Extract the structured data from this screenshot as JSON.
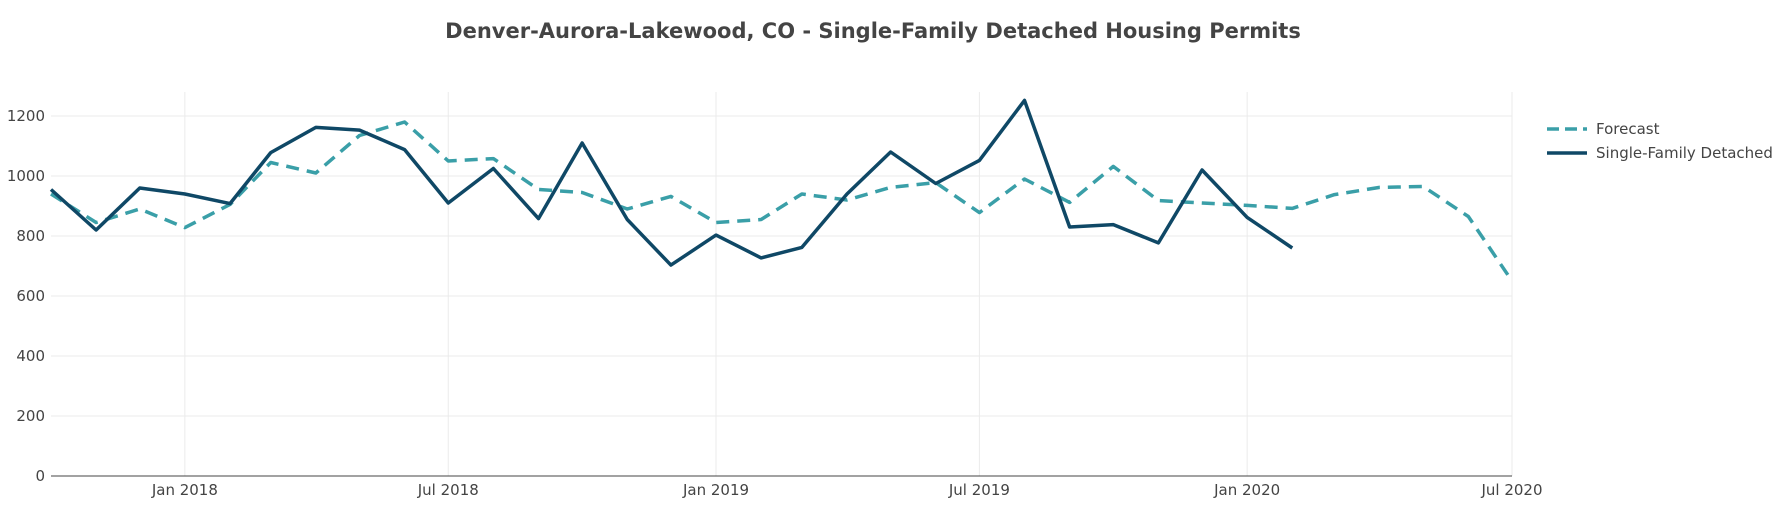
{
  "chart_data": {
    "type": "line",
    "title": "Denver-Aurora-Lakewood, CO - Single-Family Detached Housing Permits",
    "xlabel": "",
    "ylabel": "",
    "ylim": [
      0,
      1280
    ],
    "xlim": [
      "2017-10-01",
      "2020-07-01"
    ],
    "y_ticks": [
      0,
      200,
      400,
      600,
      800,
      1000,
      1200
    ],
    "x_ticks": [
      {
        "date": "2018-01-01",
        "label": "Jan 2018"
      },
      {
        "date": "2018-07-01",
        "label": "Jul 2018"
      },
      {
        "date": "2019-01-01",
        "label": "Jan 2019"
      },
      {
        "date": "2019-07-01",
        "label": "Jul 2019"
      },
      {
        "date": "2020-01-01",
        "label": "Jan 2020"
      },
      {
        "date": "2020-07-01",
        "label": "Jul 2020"
      }
    ],
    "grid": true,
    "legend_position": "top-right",
    "series": [
      {
        "name": "Forecast",
        "color": "#3a9fa8",
        "dash": "dashed",
        "points": [
          {
            "x": "2017-10-01",
            "y": 940
          },
          {
            "x": "2017-11-01",
            "y": 845
          },
          {
            "x": "2017-12-01",
            "y": 890
          },
          {
            "x": "2018-01-01",
            "y": 828
          },
          {
            "x": "2018-02-01",
            "y": 905
          },
          {
            "x": "2018-03-01",
            "y": 1045
          },
          {
            "x": "2018-04-01",
            "y": 1010
          },
          {
            "x": "2018-05-01",
            "y": 1135
          },
          {
            "x": "2018-06-01",
            "y": 1180
          },
          {
            "x": "2018-07-01",
            "y": 1050
          },
          {
            "x": "2018-08-01",
            "y": 1058
          },
          {
            "x": "2018-09-01",
            "y": 955
          },
          {
            "x": "2018-10-01",
            "y": 945
          },
          {
            "x": "2018-11-01",
            "y": 890
          },
          {
            "x": "2018-12-01",
            "y": 932
          },
          {
            "x": "2019-01-01",
            "y": 845
          },
          {
            "x": "2019-02-01",
            "y": 855
          },
          {
            "x": "2019-03-01",
            "y": 940
          },
          {
            "x": "2019-04-01",
            "y": 920
          },
          {
            "x": "2019-05-01",
            "y": 962
          },
          {
            "x": "2019-06-01",
            "y": 978
          },
          {
            "x": "2019-07-01",
            "y": 878
          },
          {
            "x": "2019-08-01",
            "y": 990
          },
          {
            "x": "2019-09-01",
            "y": 912
          },
          {
            "x": "2019-10-01",
            "y": 1032
          },
          {
            "x": "2019-11-01",
            "y": 918
          },
          {
            "x": "2019-12-01",
            "y": 910
          },
          {
            "x": "2020-01-01",
            "y": 902
          },
          {
            "x": "2020-02-01",
            "y": 892
          },
          {
            "x": "2020-03-01",
            "y": 938
          },
          {
            "x": "2020-04-01",
            "y": 962
          },
          {
            "x": "2020-05-01",
            "y": 965
          },
          {
            "x": "2020-06-01",
            "y": 865
          },
          {
            "x": "2020-07-01",
            "y": 650
          }
        ]
      },
      {
        "name": "Single-Family Detached",
        "color": "#0f4866",
        "dash": "solid",
        "points": [
          {
            "x": "2017-10-01",
            "y": 955
          },
          {
            "x": "2017-11-01",
            "y": 820
          },
          {
            "x": "2017-12-01",
            "y": 960
          },
          {
            "x": "2018-01-01",
            "y": 940
          },
          {
            "x": "2018-02-01",
            "y": 908
          },
          {
            "x": "2018-03-01",
            "y": 1078
          },
          {
            "x": "2018-04-01",
            "y": 1162
          },
          {
            "x": "2018-05-01",
            "y": 1153
          },
          {
            "x": "2018-06-01",
            "y": 1088
          },
          {
            "x": "2018-07-01",
            "y": 910
          },
          {
            "x": "2018-08-01",
            "y": 1025
          },
          {
            "x": "2018-09-01",
            "y": 858
          },
          {
            "x": "2018-10-01",
            "y": 1110
          },
          {
            "x": "2018-11-01",
            "y": 855
          },
          {
            "x": "2018-12-01",
            "y": 703
          },
          {
            "x": "2019-01-01",
            "y": 803
          },
          {
            "x": "2019-02-01",
            "y": 727
          },
          {
            "x": "2019-03-01",
            "y": 762
          },
          {
            "x": "2019-04-01",
            "y": 940
          },
          {
            "x": "2019-05-01",
            "y": 1080
          },
          {
            "x": "2019-06-01",
            "y": 975
          },
          {
            "x": "2019-07-01",
            "y": 1052
          },
          {
            "x": "2019-08-01",
            "y": 1252
          },
          {
            "x": "2019-09-01",
            "y": 830
          },
          {
            "x": "2019-10-01",
            "y": 838
          },
          {
            "x": "2019-11-01",
            "y": 777
          },
          {
            "x": "2019-12-01",
            "y": 1020
          },
          {
            "x": "2020-01-01",
            "y": 862
          },
          {
            "x": "2020-02-01",
            "y": 760
          }
        ]
      }
    ]
  }
}
